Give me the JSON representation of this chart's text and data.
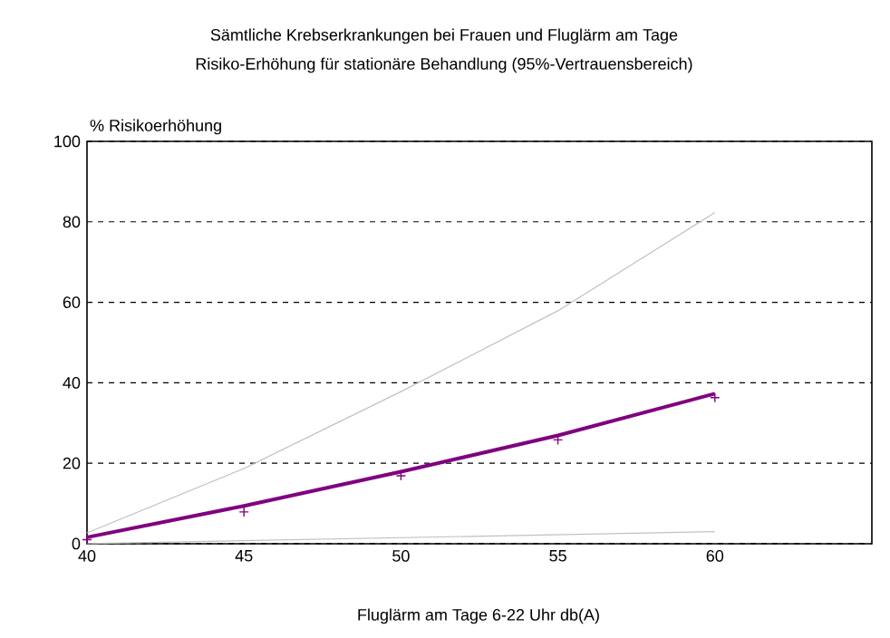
{
  "chart_data": {
    "type": "line",
    "title": "Sämtliche Krebserkrankungen bei Frauen und Fluglärm am Tage",
    "subtitle": "Risiko-Erhöhung für stationäre Behandlung (95%-Vertrauensbereich)",
    "xlabel": "Fluglärm am Tage 6-22 Uhr db(A)",
    "ylabel": "% Risikoerhöhung",
    "x": [
      40,
      45,
      50,
      55,
      60
    ],
    "series": [
      {
        "color": "#800080",
        "values": [
          1.6,
          9.4,
          17.9,
          26.9,
          37.3
        ]
      },
      {
        "type": "scatter",
        "color": "#800080",
        "marker": "cross",
        "values": [
          1,
          7.9,
          16.9,
          25.8,
          36.3
        ]
      },
      {
        "color": "#c0c0c0",
        "values": [
          2.7,
          18.7,
          37.8,
          57.9,
          82.3
        ]
      },
      {
        "color": "#c0c0c0",
        "x": [
          40,
          60
        ],
        "values": [
          0,
          3
        ]
      }
    ],
    "xlim": [
      40,
      65
    ],
    "ylim": [
      0,
      100
    ],
    "xticks": [
      40,
      45,
      50,
      55,
      60
    ],
    "yticks": [
      0,
      20,
      40,
      60,
      80,
      100
    ],
    "grid": "y",
    "marker": "none"
  }
}
